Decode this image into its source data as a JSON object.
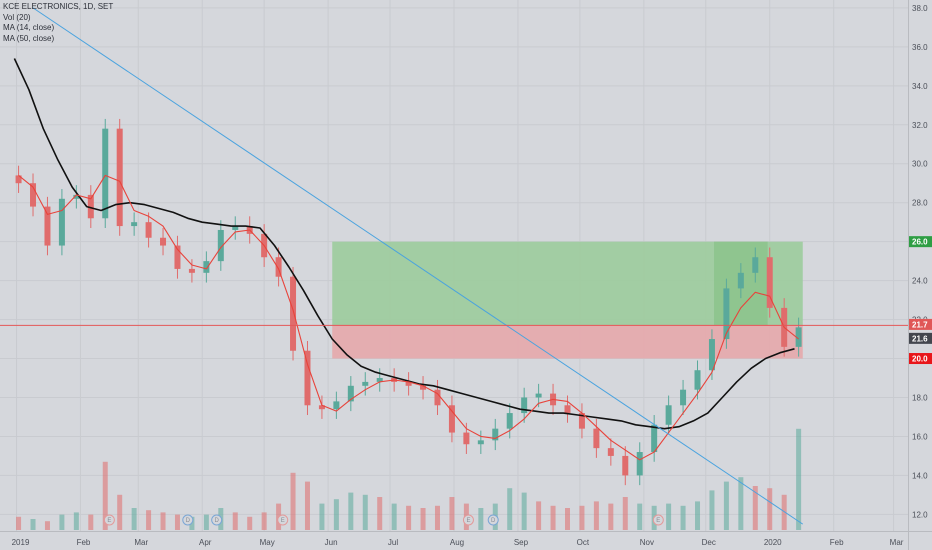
{
  "legend": {
    "title": "KCE ELECTRONICS, 1D, SET",
    "vol": "Vol (20)",
    "ma14": "MA (14, close)",
    "ma50": "MA (50, close)"
  },
  "colors": {
    "up": "#5aa99b",
    "down": "#e06c6c",
    "ma14": "#e8433b",
    "ma50": "#111111",
    "trend": "#4aa3df",
    "profit_zone": "#9ccc9c",
    "loss_zone": "#e6a9ab",
    "price_line": "#e45757"
  },
  "chart_data": {
    "type": "candlestick",
    "title": "KCE ELECTRONICS, 1D, SET",
    "ylim": [
      11.3,
      38.2
    ],
    "y_ticks": [
      "12.0",
      "14.0",
      "16.0",
      "18.0",
      "20.0",
      "22.0",
      "24.0",
      "26.0",
      "28.0",
      "30.0",
      "32.0",
      "34.0",
      "36.0",
      "38.0"
    ],
    "x_ticks": [
      "2019",
      "Feb",
      "Mar",
      "Apr",
      "May",
      "Jun",
      "Jul",
      "Aug",
      "Sep",
      "Oct",
      "Nov",
      "Dec",
      "2020",
      "Feb",
      "Mar"
    ],
    "moving_average_14": [
      {
        "x": "2019-01-02",
        "y": 29.4
      },
      {
        "x": "2019-01-09",
        "y": 28.8
      },
      {
        "x": "2019-01-16",
        "y": 27.4
      },
      {
        "x": "2019-01-23",
        "y": 27.6
      },
      {
        "x": "2019-01-30",
        "y": 28.4
      },
      {
        "x": "2019-02-06",
        "y": 28.2
      },
      {
        "x": "2019-02-13",
        "y": 29.4
      },
      {
        "x": "2019-02-20",
        "y": 29.1
      },
      {
        "x": "2019-02-27",
        "y": 27.6
      },
      {
        "x": "2019-03-06",
        "y": 27.3
      },
      {
        "x": "2019-03-13",
        "y": 26.8
      },
      {
        "x": "2019-03-20",
        "y": 25.6
      },
      {
        "x": "2019-03-27",
        "y": 24.8
      },
      {
        "x": "2019-04-03",
        "y": 24.6
      },
      {
        "x": "2019-04-10",
        "y": 25.7
      },
      {
        "x": "2019-04-17",
        "y": 26.5
      },
      {
        "x": "2019-04-24",
        "y": 26.6
      },
      {
        "x": "2019-05-01",
        "y": 25.8
      },
      {
        "x": "2019-05-08",
        "y": 24.6
      },
      {
        "x": "2019-05-15",
        "y": 22.5
      },
      {
        "x": "2019-05-22",
        "y": 19.7
      },
      {
        "x": "2019-05-29",
        "y": 17.6
      },
      {
        "x": "2019-06-05",
        "y": 17.3
      },
      {
        "x": "2019-06-12",
        "y": 17.9
      },
      {
        "x": "2019-06-19",
        "y": 18.4
      },
      {
        "x": "2019-06-26",
        "y": 18.8
      },
      {
        "x": "2019-07-03",
        "y": 18.9
      },
      {
        "x": "2019-07-10",
        "y": 18.8
      },
      {
        "x": "2019-07-17",
        "y": 18.6
      },
      {
        "x": "2019-07-24",
        "y": 18.2
      },
      {
        "x": "2019-07-31",
        "y": 17.3
      },
      {
        "x": "2019-08-07",
        "y": 16.4
      },
      {
        "x": "2019-08-14",
        "y": 16.0
      },
      {
        "x": "2019-08-21",
        "y": 15.9
      },
      {
        "x": "2019-08-28",
        "y": 16.3
      },
      {
        "x": "2019-09-04",
        "y": 16.9
      },
      {
        "x": "2019-09-11",
        "y": 17.7
      },
      {
        "x": "2019-09-18",
        "y": 17.9
      },
      {
        "x": "2019-09-25",
        "y": 17.8
      },
      {
        "x": "2019-10-02",
        "y": 17.2
      },
      {
        "x": "2019-10-09",
        "y": 16.5
      },
      {
        "x": "2019-10-16",
        "y": 15.8
      },
      {
        "x": "2019-10-23",
        "y": 15.3
      },
      {
        "x": "2019-10-30",
        "y": 14.8
      },
      {
        "x": "2019-11-06",
        "y": 15.2
      },
      {
        "x": "2019-11-13",
        "y": 16.2
      },
      {
        "x": "2019-11-20",
        "y": 17.2
      },
      {
        "x": "2019-11-27",
        "y": 18.2
      },
      {
        "x": "2019-12-04",
        "y": 19.3
      },
      {
        "x": "2019-12-11",
        "y": 21.3
      },
      {
        "x": "2019-12-18",
        "y": 22.6
      },
      {
        "x": "2019-12-25",
        "y": 23.4
      },
      {
        "x": "2020-01-01",
        "y": 23.2
      },
      {
        "x": "2020-01-08",
        "y": 21.6
      },
      {
        "x": "2020-01-15",
        "y": 21.0
      }
    ],
    "moving_average_50": [
      {
        "x": "2018-12-31",
        "y": 35.4
      },
      {
        "x": "2019-01-07",
        "y": 33.8
      },
      {
        "x": "2019-01-14",
        "y": 31.8
      },
      {
        "x": "2019-01-21",
        "y": 30.2
      },
      {
        "x": "2019-01-28",
        "y": 28.8
      },
      {
        "x": "2019-02-04",
        "y": 27.8
      },
      {
        "x": "2019-02-11",
        "y": 27.6
      },
      {
        "x": "2019-02-18",
        "y": 27.9
      },
      {
        "x": "2019-02-25",
        "y": 28.0
      },
      {
        "x": "2019-03-04",
        "y": 27.9
      },
      {
        "x": "2019-03-11",
        "y": 27.7
      },
      {
        "x": "2019-03-18",
        "y": 27.5
      },
      {
        "x": "2019-03-25",
        "y": 27.2
      },
      {
        "x": "2019-04-01",
        "y": 27.0
      },
      {
        "x": "2019-04-08",
        "y": 26.9
      },
      {
        "x": "2019-04-15",
        "y": 26.8
      },
      {
        "x": "2019-04-22",
        "y": 26.8
      },
      {
        "x": "2019-04-29",
        "y": 26.7
      },
      {
        "x": "2019-05-06",
        "y": 25.8
      },
      {
        "x": "2019-05-13",
        "y": 24.7
      },
      {
        "x": "2019-05-20",
        "y": 23.5
      },
      {
        "x": "2019-05-27",
        "y": 22.2
      },
      {
        "x": "2019-06-03",
        "y": 21.0
      },
      {
        "x": "2019-06-10",
        "y": 20.2
      },
      {
        "x": "2019-06-17",
        "y": 19.6
      },
      {
        "x": "2019-06-24",
        "y": 19.3
      },
      {
        "x": "2019-07-01",
        "y": 19.1
      },
      {
        "x": "2019-07-08",
        "y": 18.9
      },
      {
        "x": "2019-07-15",
        "y": 18.7
      },
      {
        "x": "2019-07-22",
        "y": 18.6
      },
      {
        "x": "2019-07-29",
        "y": 18.4
      },
      {
        "x": "2019-08-05",
        "y": 18.2
      },
      {
        "x": "2019-08-12",
        "y": 18.0
      },
      {
        "x": "2019-08-19",
        "y": 17.8
      },
      {
        "x": "2019-08-26",
        "y": 17.6
      },
      {
        "x": "2019-09-02",
        "y": 17.4
      },
      {
        "x": "2019-09-09",
        "y": 17.3
      },
      {
        "x": "2019-09-16",
        "y": 17.2
      },
      {
        "x": "2019-09-23",
        "y": 17.2
      },
      {
        "x": "2019-09-30",
        "y": 17.1
      },
      {
        "x": "2019-10-07",
        "y": 17.0
      },
      {
        "x": "2019-10-14",
        "y": 16.9
      },
      {
        "x": "2019-10-21",
        "y": 16.8
      },
      {
        "x": "2019-10-28",
        "y": 16.6
      },
      {
        "x": "2019-11-04",
        "y": 16.5
      },
      {
        "x": "2019-11-11",
        "y": 16.4
      },
      {
        "x": "2019-11-18",
        "y": 16.5
      },
      {
        "x": "2019-11-25",
        "y": 16.8
      },
      {
        "x": "2019-12-02",
        "y": 17.2
      },
      {
        "x": "2019-12-09",
        "y": 18.0
      },
      {
        "x": "2019-12-16",
        "y": 18.8
      },
      {
        "x": "2019-12-23",
        "y": 19.5
      },
      {
        "x": "2019-12-30",
        "y": 20.0
      },
      {
        "x": "2020-01-06",
        "y": 20.3
      },
      {
        "x": "2020-01-13",
        "y": 20.5
      }
    ],
    "close_price": [
      {
        "x": "2019-01-02",
        "y": 29.0
      },
      {
        "x": "2019-01-09",
        "y": 27.8
      },
      {
        "x": "2019-01-16",
        "y": 25.8
      },
      {
        "x": "2019-01-23",
        "y": 28.2
      },
      {
        "x": "2019-01-30",
        "y": 28.4
      },
      {
        "x": "2019-02-06",
        "y": 27.2
      },
      {
        "x": "2019-02-13",
        "y": 31.8
      },
      {
        "x": "2019-02-20",
        "y": 26.8
      },
      {
        "x": "2019-02-27",
        "y": 27.0
      },
      {
        "x": "2019-03-06",
        "y": 26.2
      },
      {
        "x": "2019-03-13",
        "y": 25.8
      },
      {
        "x": "2019-03-20",
        "y": 24.6
      },
      {
        "x": "2019-03-27",
        "y": 24.4
      },
      {
        "x": "2019-04-03",
        "y": 25.0
      },
      {
        "x": "2019-04-10",
        "y": 26.6
      },
      {
        "x": "2019-04-17",
        "y": 26.8
      },
      {
        "x": "2019-04-24",
        "y": 26.4
      },
      {
        "x": "2019-05-01",
        "y": 25.2
      },
      {
        "x": "2019-05-08",
        "y": 24.2
      },
      {
        "x": "2019-05-15",
        "y": 20.4
      },
      {
        "x": "2019-05-22",
        "y": 17.6
      },
      {
        "x": "2019-05-29",
        "y": 17.4
      },
      {
        "x": "2019-06-05",
        "y": 17.8
      },
      {
        "x": "2019-06-12",
        "y": 18.6
      },
      {
        "x": "2019-06-19",
        "y": 18.8
      },
      {
        "x": "2019-06-26",
        "y": 19.0
      },
      {
        "x": "2019-07-03",
        "y": 18.8
      },
      {
        "x": "2019-07-10",
        "y": 18.6
      },
      {
        "x": "2019-07-17",
        "y": 18.4
      },
      {
        "x": "2019-07-24",
        "y": 17.6
      },
      {
        "x": "2019-07-31",
        "y": 16.2
      },
      {
        "x": "2019-08-07",
        "y": 15.6
      },
      {
        "x": "2019-08-14",
        "y": 15.8
      },
      {
        "x": "2019-08-21",
        "y": 16.4
      },
      {
        "x": "2019-08-28",
        "y": 17.2
      },
      {
        "x": "2019-09-04",
        "y": 18.0
      },
      {
        "x": "2019-09-11",
        "y": 18.2
      },
      {
        "x": "2019-09-18",
        "y": 17.6
      },
      {
        "x": "2019-09-25",
        "y": 17.2
      },
      {
        "x": "2019-10-02",
        "y": 16.4
      },
      {
        "x": "2019-10-09",
        "y": 15.4
      },
      {
        "x": "2019-10-16",
        "y": 15.0
      },
      {
        "x": "2019-10-23",
        "y": 14.0
      },
      {
        "x": "2019-10-30",
        "y": 15.2
      },
      {
        "x": "2019-11-06",
        "y": 16.6
      },
      {
        "x": "2019-11-13",
        "y": 17.6
      },
      {
        "x": "2019-11-20",
        "y": 18.4
      },
      {
        "x": "2019-11-27",
        "y": 19.4
      },
      {
        "x": "2019-12-04",
        "y": 21.0
      },
      {
        "x": "2019-12-11",
        "y": 23.6
      },
      {
        "x": "2019-12-18",
        "y": 24.4
      },
      {
        "x": "2019-12-25",
        "y": 25.2
      },
      {
        "x": "2020-01-01",
        "y": 22.6
      },
      {
        "x": "2020-01-08",
        "y": 20.6
      },
      {
        "x": "2020-01-15",
        "y": 21.6
      }
    ],
    "horizontal_line": {
      "price": 21.7,
      "label": "21.7"
    },
    "trendline": {
      "from": {
        "x": "2019-01-09",
        "y": 38.0
      },
      "to": {
        "x": "2020-01-17",
        "y": 11.5
      }
    },
    "position": {
      "entry": 21.7,
      "target": 26.0,
      "stop": 20.0,
      "from": "2019-06-03",
      "to": "2020-01-17"
    },
    "badges": [
      {
        "label": "26.0",
        "price": 26.0,
        "color": "#2e9e44"
      },
      {
        "label": "21.7",
        "price": 21.7,
        "color": "#e05757"
      },
      {
        "label": "21.6",
        "price": 21.6,
        "color": "#43464e"
      },
      {
        "label": "20.0",
        "price": 20.0,
        "color": "#e8161a"
      }
    ],
    "volume": [
      {
        "x": "2019-01-02",
        "value": 0.3,
        "dir": "down"
      },
      {
        "x": "2019-01-09",
        "value": 0.25,
        "dir": "up"
      },
      {
        "x": "2019-01-16",
        "value": 0.2,
        "dir": "down"
      },
      {
        "x": "2019-01-23",
        "value": 0.35,
        "dir": "up"
      },
      {
        "x": "2019-01-30",
        "value": 0.4,
        "dir": "up"
      },
      {
        "x": "2019-02-06",
        "value": 0.35,
        "dir": "down"
      },
      {
        "x": "2019-02-13",
        "value": 1.55,
        "dir": "down"
      },
      {
        "x": "2019-02-20",
        "value": 0.8,
        "dir": "down"
      },
      {
        "x": "2019-02-27",
        "value": 0.5,
        "dir": "up"
      },
      {
        "x": "2019-03-06",
        "value": 0.45,
        "dir": "down"
      },
      {
        "x": "2019-03-13",
        "value": 0.4,
        "dir": "down"
      },
      {
        "x": "2019-03-20",
        "value": 0.35,
        "dir": "down"
      },
      {
        "x": "2019-03-27",
        "value": 0.3,
        "dir": "up"
      },
      {
        "x": "2019-04-03",
        "value": 0.35,
        "dir": "up"
      },
      {
        "x": "2019-04-10",
        "value": 0.5,
        "dir": "up"
      },
      {
        "x": "2019-04-17",
        "value": 0.4,
        "dir": "down"
      },
      {
        "x": "2019-04-24",
        "value": 0.3,
        "dir": "down"
      },
      {
        "x": "2019-05-01",
        "value": 0.4,
        "dir": "down"
      },
      {
        "x": "2019-05-08",
        "value": 0.6,
        "dir": "down"
      },
      {
        "x": "2019-05-15",
        "value": 1.3,
        "dir": "down"
      },
      {
        "x": "2019-05-22",
        "value": 1.1,
        "dir": "down"
      },
      {
        "x": "2019-05-29",
        "value": 0.6,
        "dir": "up"
      },
      {
        "x": "2019-06-05",
        "value": 0.7,
        "dir": "up"
      },
      {
        "x": "2019-06-12",
        "value": 0.85,
        "dir": "up"
      },
      {
        "x": "2019-06-19",
        "value": 0.8,
        "dir": "up"
      },
      {
        "x": "2019-06-26",
        "value": 0.75,
        "dir": "down"
      },
      {
        "x": "2019-07-03",
        "value": 0.6,
        "dir": "up"
      },
      {
        "x": "2019-07-10",
        "value": 0.55,
        "dir": "down"
      },
      {
        "x": "2019-07-17",
        "value": 0.5,
        "dir": "down"
      },
      {
        "x": "2019-07-24",
        "value": 0.55,
        "dir": "down"
      },
      {
        "x": "2019-07-31",
        "value": 0.75,
        "dir": "down"
      },
      {
        "x": "2019-08-07",
        "value": 0.6,
        "dir": "down"
      },
      {
        "x": "2019-08-14",
        "value": 0.5,
        "dir": "up"
      },
      {
        "x": "2019-08-21",
        "value": 0.6,
        "dir": "up"
      },
      {
        "x": "2019-08-28",
        "value": 0.95,
        "dir": "up"
      },
      {
        "x": "2019-09-04",
        "value": 0.85,
        "dir": "up"
      },
      {
        "x": "2019-09-11",
        "value": 0.65,
        "dir": "down"
      },
      {
        "x": "2019-09-18",
        "value": 0.55,
        "dir": "down"
      },
      {
        "x": "2019-09-25",
        "value": 0.5,
        "dir": "down"
      },
      {
        "x": "2019-10-02",
        "value": 0.55,
        "dir": "down"
      },
      {
        "x": "2019-10-09",
        "value": 0.65,
        "dir": "down"
      },
      {
        "x": "2019-10-16",
        "value": 0.6,
        "dir": "down"
      },
      {
        "x": "2019-10-23",
        "value": 0.75,
        "dir": "down"
      },
      {
        "x": "2019-10-30",
        "value": 0.6,
        "dir": "up"
      },
      {
        "x": "2019-11-06",
        "value": 0.55,
        "dir": "up"
      },
      {
        "x": "2019-11-13",
        "value": 0.6,
        "dir": "up"
      },
      {
        "x": "2019-11-20",
        "value": 0.55,
        "dir": "up"
      },
      {
        "x": "2019-11-27",
        "value": 0.65,
        "dir": "up"
      },
      {
        "x": "2019-12-04",
        "value": 0.9,
        "dir": "up"
      },
      {
        "x": "2019-12-11",
        "value": 1.1,
        "dir": "up"
      },
      {
        "x": "2019-12-18",
        "value": 1.2,
        "dir": "up"
      },
      {
        "x": "2019-12-25",
        "value": 1.0,
        "dir": "down"
      },
      {
        "x": "2020-01-01",
        "value": 0.95,
        "dir": "down"
      },
      {
        "x": "2020-01-08",
        "value": 0.8,
        "dir": "down"
      },
      {
        "x": "2020-01-15",
        "value": 2.3,
        "dir": "up"
      }
    ],
    "volume_ylim": [
      0,
      2.5
    ],
    "events": [
      {
        "label": "E",
        "x": "2019-02-15"
      },
      {
        "label": "D",
        "x": "2019-03-25"
      },
      {
        "label": "D",
        "x": "2019-04-08"
      },
      {
        "label": "E",
        "x": "2019-05-10"
      },
      {
        "label": "E",
        "x": "2019-08-08"
      },
      {
        "label": "D",
        "x": "2019-08-20"
      },
      {
        "label": "E",
        "x": "2019-11-08"
      }
    ]
  }
}
